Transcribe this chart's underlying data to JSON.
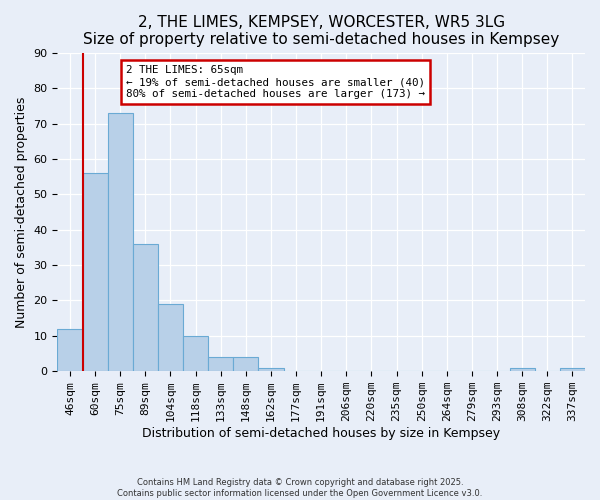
{
  "title": "2, THE LIMES, KEMPSEY, WORCESTER, WR5 3LG",
  "subtitle": "Size of property relative to semi-detached houses in Kempsey",
  "xlabel": "Distribution of semi-detached houses by size in Kempsey",
  "ylabel": "Number of semi-detached properties",
  "bar_labels": [
    "46sqm",
    "60sqm",
    "75sqm",
    "89sqm",
    "104sqm",
    "118sqm",
    "133sqm",
    "148sqm",
    "162sqm",
    "177sqm",
    "191sqm",
    "206sqm",
    "220sqm",
    "235sqm",
    "250sqm",
    "264sqm",
    "279sqm",
    "293sqm",
    "308sqm",
    "322sqm",
    "337sqm"
  ],
  "bar_values": [
    12,
    56,
    73,
    36,
    19,
    10,
    4,
    4,
    1,
    0,
    0,
    0,
    0,
    0,
    0,
    0,
    0,
    0,
    1,
    0,
    1
  ],
  "bar_color": "#b8d0e8",
  "bar_edge_color": "#6aaad4",
  "vline_pos": 1.5,
  "vline_color": "#cc0000",
  "ylim": [
    0,
    90
  ],
  "yticks": [
    0,
    10,
    20,
    30,
    40,
    50,
    60,
    70,
    80,
    90
  ],
  "annotation_title": "2 THE LIMES: 65sqm",
  "annotation_line1": "← 19% of semi-detached houses are smaller (40)",
  "annotation_line2": "80% of semi-detached houses are larger (173) →",
  "annotation_box_color": "#cc0000",
  "footer_line1": "Contains HM Land Registry data © Crown copyright and database right 2025.",
  "footer_line2": "Contains public sector information licensed under the Open Government Licence v3.0.",
  "background_color": "#e8eef8",
  "grid_color": "#ffffff",
  "title_fontsize": 11,
  "axis_label_fontsize": 9,
  "tick_fontsize": 8
}
